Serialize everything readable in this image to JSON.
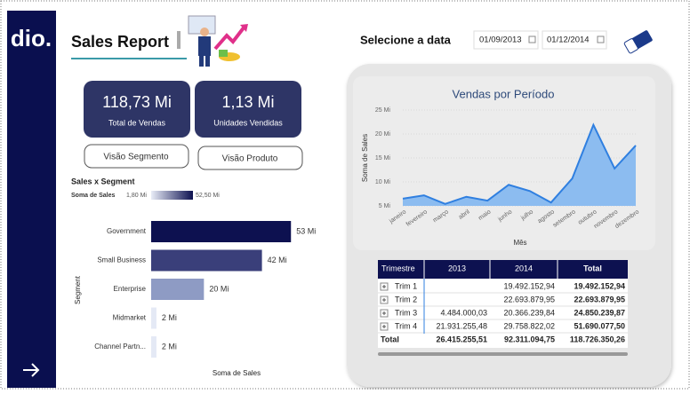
{
  "sidebar": {
    "logo": "dio."
  },
  "header": {
    "title": "Sales Report"
  },
  "kpis": [
    {
      "value": "118,73 Mi",
      "label": "Total de Vendas"
    },
    {
      "value": "1,13 Mi",
      "label": "Unidades Vendidas"
    }
  ],
  "buttons": [
    "Visão Segmento",
    "Visão Produto"
  ],
  "date_filter": {
    "label": "Selecione a data",
    "start": "01/09/2013",
    "end": "01/12/2014"
  },
  "bar_chart": {
    "type": "bar",
    "title": "Sales x Segment",
    "legend_title": "Soma de Sales",
    "legend_min": "1,80 Mi",
    "legend_max": "52,50 Mi",
    "categories": [
      "Government",
      "Small Business",
      "Enterprise",
      "Midmarket",
      "Channel Partn..."
    ],
    "values": [
      53,
      42,
      20,
      2,
      2
    ],
    "value_labels": [
      "53 Mi",
      "42 Mi",
      "20 Mi",
      "2 Mi",
      "2 Mi"
    ],
    "colors": [
      "#0d1150",
      "#3a3f7a",
      "#8e9bc4",
      "#e4e9f5",
      "#e4e9f5"
    ],
    "xlim": [
      0,
      60
    ],
    "x_label": "Soma de Sales",
    "y_label": "Segment"
  },
  "line_chart": {
    "type": "area",
    "title": "Vendas por Período",
    "color": "#2f7fe0",
    "fill": "#8cbcf0",
    "categories": [
      "janeiro",
      "fevereiro",
      "março",
      "abril",
      "maio",
      "junho",
      "julho",
      "agosto",
      "setembro",
      "outubro",
      "novembro",
      "dezembro"
    ],
    "values": [
      6.5,
      7.2,
      5.4,
      6.9,
      6.1,
      9.4,
      8.1,
      5.7,
      10.7,
      21.9,
      12.8,
      17.6
    ],
    "ylim": [
      5,
      25
    ],
    "yticks": [
      {
        "value": 5,
        "label": "5 Mi"
      },
      {
        "value": 10,
        "label": "10 Mi"
      },
      {
        "value": 15,
        "label": "15 Mi"
      },
      {
        "value": 20,
        "label": "20 Mi"
      },
      {
        "value": 25,
        "label": "25 Mi"
      }
    ],
    "x_label": "Mês",
    "y_label": "Soma de Sales"
  },
  "table": {
    "columns": [
      "Trimestre",
      "2013",
      "2014",
      "Total"
    ],
    "rows": [
      [
        "Trim 1",
        null,
        "19.492.152,94",
        "19.492.152,94"
      ],
      [
        "Trim 2",
        null,
        "22.693.879,95",
        "22.693.879,95"
      ],
      [
        "Trim 3",
        "4.484.000,03",
        "20.366.239,84",
        "24.850.239,87"
      ],
      [
        "Trim 4",
        "21.931.255,48",
        "29.758.822,02",
        "51.690.077,50"
      ]
    ],
    "total": [
      "Total",
      "26.415.255,51",
      "92.311.094,75",
      "118.726.350,26"
    ]
  }
}
